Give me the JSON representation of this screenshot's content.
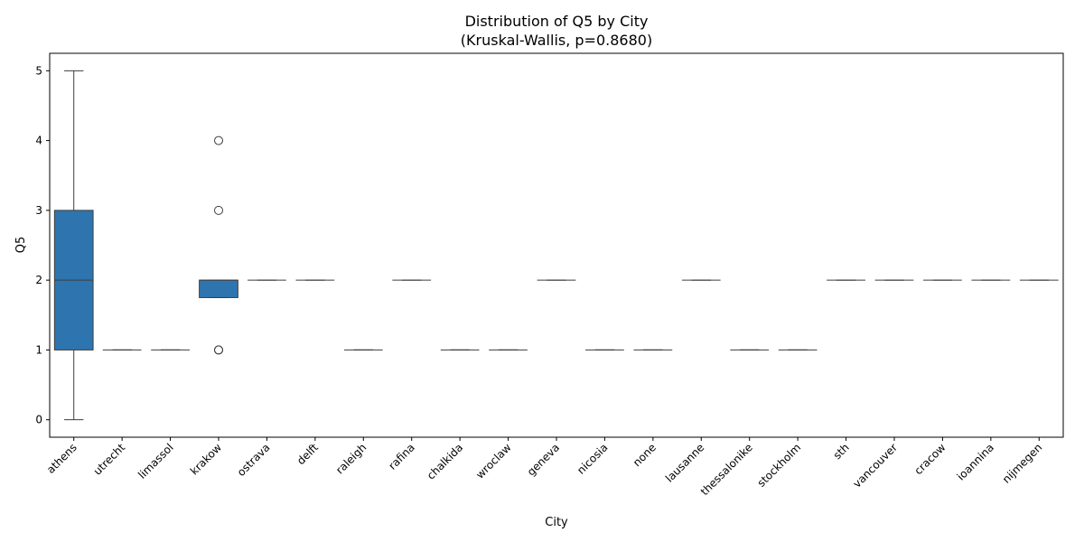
{
  "chart_data": {
    "type": "box",
    "title": "Distribution of Q5 by City",
    "subtitle": "(Kruskal-Wallis, p=0.8680)",
    "xlabel": "City",
    "ylabel": "Q5",
    "ylim": [
      -0.25,
      5.25
    ],
    "yticks": [
      0,
      1,
      2,
      3,
      4,
      5
    ],
    "grid": false,
    "box_color": "#2e75b0",
    "categories": [
      "athens",
      "utrecht",
      "limassol",
      "krakow",
      "ostrava",
      "delft",
      "raleigh",
      "rafina",
      "chalkida",
      "wroclaw",
      "geneva",
      "nicosia",
      "none",
      "lausanne",
      "thessalonike",
      "stockholm",
      "sth",
      "vancouver",
      "cracow",
      "ioannina",
      "nijmegen"
    ],
    "boxes": [
      {
        "category": "athens",
        "q1": 1,
        "median": 2,
        "q3": 3,
        "whisker_low": 0,
        "whisker_high": 5,
        "outliers": []
      },
      {
        "category": "utrecht",
        "q1": 1,
        "median": 1,
        "q3": 1,
        "whisker_low": 1,
        "whisker_high": 1,
        "outliers": []
      },
      {
        "category": "limassol",
        "q1": 1,
        "median": 1,
        "q3": 1,
        "whisker_low": 1,
        "whisker_high": 1,
        "outliers": []
      },
      {
        "category": "krakow",
        "q1": 1.75,
        "median": 2,
        "q3": 2,
        "whisker_low": 1.75,
        "whisker_high": 2,
        "outliers": [
          1,
          1,
          3,
          4
        ]
      },
      {
        "category": "ostrava",
        "q1": 2,
        "median": 2,
        "q3": 2,
        "whisker_low": 2,
        "whisker_high": 2,
        "outliers": []
      },
      {
        "category": "delft",
        "q1": 2,
        "median": 2,
        "q3": 2,
        "whisker_low": 2,
        "whisker_high": 2,
        "outliers": []
      },
      {
        "category": "raleigh",
        "q1": 1,
        "median": 1,
        "q3": 1,
        "whisker_low": 1,
        "whisker_high": 1,
        "outliers": []
      },
      {
        "category": "rafina",
        "q1": 2,
        "median": 2,
        "q3": 2,
        "whisker_low": 2,
        "whisker_high": 2,
        "outliers": []
      },
      {
        "category": "chalkida",
        "q1": 1,
        "median": 1,
        "q3": 1,
        "whisker_low": 1,
        "whisker_high": 1,
        "outliers": []
      },
      {
        "category": "wroclaw",
        "q1": 1,
        "median": 1,
        "q3": 1,
        "whisker_low": 1,
        "whisker_high": 1,
        "outliers": []
      },
      {
        "category": "geneva",
        "q1": 2,
        "median": 2,
        "q3": 2,
        "whisker_low": 2,
        "whisker_high": 2,
        "outliers": []
      },
      {
        "category": "nicosia",
        "q1": 1,
        "median": 1,
        "q3": 1,
        "whisker_low": 1,
        "whisker_high": 1,
        "outliers": []
      },
      {
        "category": "none",
        "q1": 1,
        "median": 1,
        "q3": 1,
        "whisker_low": 1,
        "whisker_high": 1,
        "outliers": []
      },
      {
        "category": "lausanne",
        "q1": 2,
        "median": 2,
        "q3": 2,
        "whisker_low": 2,
        "whisker_high": 2,
        "outliers": []
      },
      {
        "category": "thessalonike",
        "q1": 1,
        "median": 1,
        "q3": 1,
        "whisker_low": 1,
        "whisker_high": 1,
        "outliers": []
      },
      {
        "category": "stockholm",
        "q1": 1,
        "median": 1,
        "q3": 1,
        "whisker_low": 1,
        "whisker_high": 1,
        "outliers": []
      },
      {
        "category": "sth",
        "q1": 2,
        "median": 2,
        "q3": 2,
        "whisker_low": 2,
        "whisker_high": 2,
        "outliers": []
      },
      {
        "category": "vancouver",
        "q1": 2,
        "median": 2,
        "q3": 2,
        "whisker_low": 2,
        "whisker_high": 2,
        "outliers": []
      },
      {
        "category": "cracow",
        "q1": 2,
        "median": 2,
        "q3": 2,
        "whisker_low": 2,
        "whisker_high": 2,
        "outliers": []
      },
      {
        "category": "ioannina",
        "q1": 2,
        "median": 2,
        "q3": 2,
        "whisker_low": 2,
        "whisker_high": 2,
        "outliers": []
      },
      {
        "category": "nijmegen",
        "q1": 2,
        "median": 2,
        "q3": 2,
        "whisker_low": 2,
        "whisker_high": 2,
        "outliers": []
      }
    ]
  }
}
